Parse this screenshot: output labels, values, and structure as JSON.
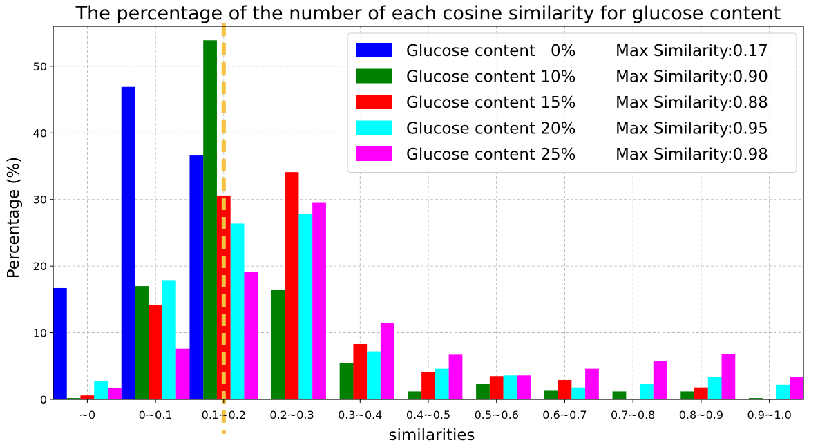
{
  "chart_data": {
    "type": "bar",
    "title": "The percentage of the number of each cosine similarity for glucose content",
    "xlabel": "similarities",
    "ylabel": "Percentage (%)",
    "ylim": [
      0,
      56
    ],
    "yticks": [
      0,
      10,
      20,
      30,
      40,
      50
    ],
    "grid": true,
    "legend_position": "top-right",
    "threshold_line": {
      "category_position": 2.5,
      "color": "#f5c242",
      "style": "dashed"
    },
    "categories": [
      "~0",
      "0~0.1",
      "0.1~0.2",
      "0.2~0.3",
      "0.3~0.4",
      "0.4~0.5",
      "0.5~0.6",
      "0.6~0.7",
      "0.7~0.8",
      "0.8~0.9",
      "0.9~1.0"
    ],
    "series": [
      {
        "name": "Glucose content   0%",
        "max_similarity": "Max Similarity:0.17",
        "color": "#0000ff",
        "values": [
          16.7,
          46.9,
          36.6,
          0,
          0,
          0,
          0,
          0,
          0,
          0,
          0
        ]
      },
      {
        "name": "Glucose content 10%",
        "max_similarity": "Max Similarity:0.90",
        "color": "#008000",
        "values": [
          0.2,
          17.0,
          53.9,
          16.4,
          5.4,
          1.2,
          2.3,
          1.3,
          1.2,
          1.2,
          0.2
        ]
      },
      {
        "name": "Glucose content 15%",
        "max_similarity": "Max Similarity:0.88",
        "color": "#ff0000",
        "values": [
          0.6,
          14.2,
          30.6,
          34.1,
          8.3,
          4.1,
          3.5,
          2.9,
          0,
          1.8,
          0
        ]
      },
      {
        "name": "Glucose content 20%",
        "max_similarity": "Max Similarity:0.95",
        "color": "#00ffff",
        "values": [
          2.8,
          17.9,
          26.4,
          27.9,
          7.2,
          4.6,
          3.6,
          1.8,
          2.3,
          3.4,
          2.2
        ]
      },
      {
        "name": "Glucose content 25%",
        "max_similarity": "Max Similarity:0.98",
        "color": "#ff00ff",
        "values": [
          1.7,
          7.6,
          19.1,
          29.5,
          11.5,
          6.7,
          3.6,
          4.6,
          5.7,
          6.8,
          3.4
        ]
      }
    ]
  }
}
